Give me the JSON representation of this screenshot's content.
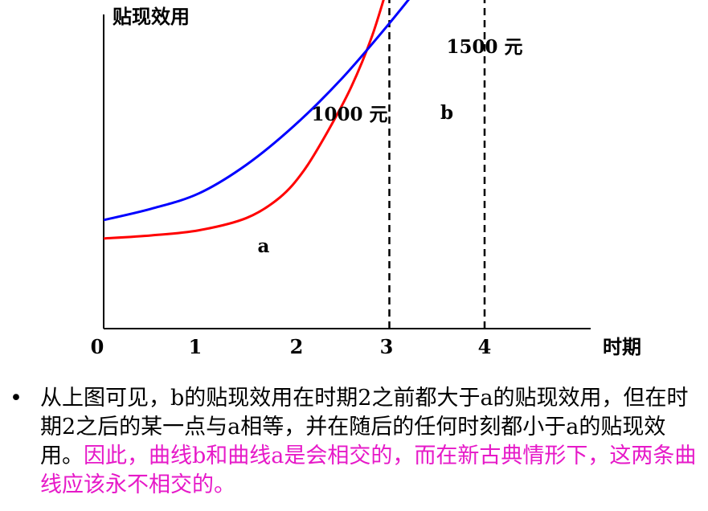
{
  "chart_data": {
    "type": "line",
    "ylabel": "贴现效用",
    "xlabel": "时期",
    "x_ticks": [
      "0",
      "1",
      "2",
      "3",
      "4"
    ],
    "xlim": [
      0,
      4.7
    ],
    "ylim": [
      0,
      1750
    ],
    "grid": false,
    "series": [
      {
        "name": "a",
        "color": "#ff0000",
        "points": [
          [
            0,
            440
          ],
          [
            0.5,
            455
          ],
          [
            1,
            480
          ],
          [
            1.5,
            540
          ],
          [
            1.85,
            640
          ],
          [
            2.1,
            770
          ],
          [
            2.35,
            960
          ],
          [
            2.6,
            1180
          ],
          [
            2.82,
            1430
          ],
          [
            3,
            1700
          ]
        ]
      },
      {
        "name": "b",
        "color": "#0000ff",
        "points": [
          [
            0,
            530
          ],
          [
            0.5,
            585
          ],
          [
            1,
            660
          ],
          [
            1.5,
            800
          ],
          [
            2,
            990
          ],
          [
            2.5,
            1220
          ],
          [
            3,
            1490
          ],
          [
            3.5,
            1780
          ],
          [
            4,
            2075
          ]
        ]
      }
    ],
    "annotations": [
      {
        "text": "1000 元",
        "x": 3,
        "y": 1700
      },
      {
        "text": "1500 元",
        "x": 4,
        "y": 2075
      }
    ],
    "dashed_lines": [
      {
        "x": 3,
        "y_top": 1700
      },
      {
        "x": 4,
        "y_top": 2075
      }
    ]
  },
  "caption": {
    "bullet": "•",
    "black_text": "从上图可见，b的贴现效用在时期2之前都大于a的贴现效用，但在时期2之后的某一点与a相等，并在随后的任何时刻都小于a的贴现效用。",
    "pink_text": "因此，曲线b和曲线a是会相交的，而在新古典情形下，这两条曲线应该永不相交的。",
    "pink_color": "#e619c8"
  }
}
